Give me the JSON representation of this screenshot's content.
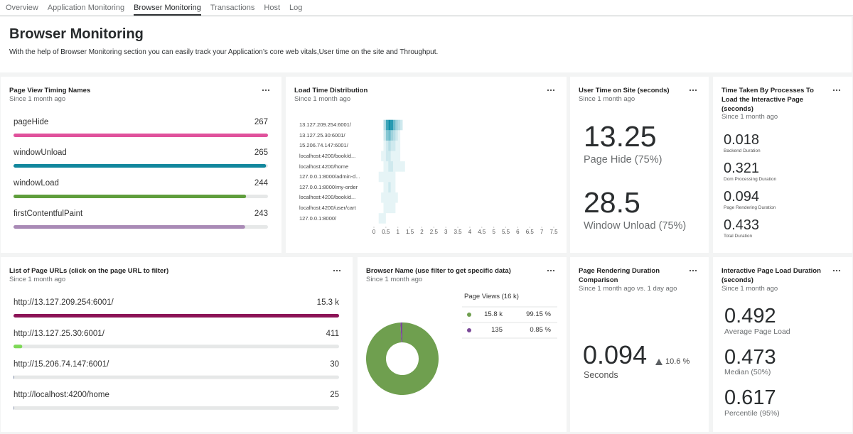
{
  "tabs": [
    "Overview",
    "Application Monitoring",
    "Browser Monitoring",
    "Transactions",
    "Host",
    "Log"
  ],
  "header": {
    "title": "Browser Monitoring",
    "description": "With the help of Browser Monitoring section you can easily track your Application’s core web vitals,User time on the site and Throughput."
  },
  "widgets": {
    "page_view_timing": {
      "title": "Page View Timing Names",
      "subtitle": "Since 1 month ago",
      "labels": [
        "pageHide",
        "windowUnload",
        "windowLoad",
        "firstContentfulPaint"
      ],
      "values": [
        267,
        265,
        244,
        243
      ],
      "colors": [
        "#e0529c",
        "#12879d",
        "#5f9e3c",
        "#a98ab6"
      ]
    },
    "load_time": {
      "title": "Load Time Distribution",
      "subtitle": "Since 1 month ago",
      "type": "heatmap",
      "rows": [
        "13.127.209.254:6001/",
        "13.127.25.30:6001/",
        "15.206.74.147:6001/",
        "localhost:4200/book/d...",
        "localhost:4200/home",
        "127.0.0.1:8000/admin-d...",
        "127.0.0.1:8000/my-order",
        "localhost:4200/book/d...",
        "localhost:4200/user/cart",
        "127.0.0.1:8000/"
      ],
      "bins": [
        0,
        0.1,
        0.2,
        0.3,
        0.4,
        0.5,
        0.6,
        0.7,
        0.8,
        0.9,
        1,
        1.1,
        1.2,
        1.3,
        1.4,
        1.5
      ],
      "values": [
        [
          0,
          0,
          0,
          0,
          3,
          8,
          10,
          9,
          6,
          4,
          3,
          2,
          0,
          0,
          0
        ],
        [
          0,
          0,
          0,
          0,
          2,
          5,
          6,
          4,
          3,
          2,
          1,
          0,
          0,
          0,
          0
        ],
        [
          0,
          0,
          0,
          0,
          1,
          2,
          3,
          2,
          2,
          1,
          1,
          0,
          0,
          0,
          0
        ],
        [
          0,
          0,
          0,
          1,
          1,
          2,
          2,
          1,
          1,
          1,
          1,
          0,
          0,
          0,
          0
        ],
        [
          0,
          0,
          0,
          0,
          1,
          1,
          2,
          2,
          1,
          1,
          1,
          1,
          1,
          0,
          0
        ],
        [
          0,
          0,
          1,
          1,
          1,
          1,
          1,
          1,
          1,
          0,
          0,
          0,
          0,
          0,
          0
        ],
        [
          0,
          0,
          0,
          0,
          1,
          1,
          2,
          1,
          1,
          0,
          0,
          0,
          0,
          0,
          0
        ],
        [
          0,
          0,
          0,
          1,
          1,
          1,
          1,
          1,
          1,
          1,
          0,
          0,
          0,
          0,
          0
        ],
        [
          0,
          0,
          0,
          0,
          1,
          1,
          1,
          1,
          1,
          0,
          0,
          0,
          0,
          0,
          0
        ],
        [
          0,
          0,
          1,
          1,
          1,
          0,
          0,
          0,
          0,
          0,
          0,
          0,
          0,
          0,
          0
        ]
      ],
      "xlim": [
        0,
        7.5
      ],
      "xticks": [
        0,
        0.5,
        1,
        1.5,
        2,
        2.5,
        3,
        3.5,
        4,
        4.5,
        5,
        5.5,
        6,
        6.5,
        7,
        7.5
      ],
      "color": "#0e8fa8"
    },
    "user_time": {
      "title": "User Time on Site (seconds)",
      "subtitle": "Since 1 month ago",
      "metrics": [
        {
          "value": 13.25,
          "label": "Page Hide (75%)"
        },
        {
          "value": 28.5,
          "label": "Window Unload (75%)"
        }
      ]
    },
    "process_time": {
      "title": "Time Taken By Processes To Load the Interactive Page (seconds)",
      "subtitle": "Since 1 month ago",
      "metrics": [
        {
          "value": 0.018,
          "label": "Backend Duration"
        },
        {
          "value": 0.321,
          "label": "Dom Processing Duration"
        },
        {
          "value": 0.094,
          "label": "Page Rendering Duration"
        },
        {
          "value": 0.433,
          "label": "Total Duration"
        }
      ]
    },
    "page_urls": {
      "title": "List of Page URLs (click on the page URL to filter)",
      "subtitle": "Since 1 month ago",
      "labels": [
        "http://13.127.209.254:6001/",
        "http://13.127.25.30:6001/",
        "http://15.206.74.147:6001/",
        "http://localhost:4200/home"
      ],
      "values": [
        15300,
        411,
        30,
        25
      ],
      "value_labels": [
        "15.3 k",
        "411",
        "30",
        "25"
      ],
      "colors": [
        "#8c1457",
        "#7ed957",
        "#6b7a99",
        "#6b7a99"
      ]
    },
    "browser_name": {
      "title": "Browser Name (use filter to get specific data)",
      "subtitle": "Since 1 month ago",
      "type": "pie",
      "legend_title": "Page Views (16 k)",
      "views": [
        15800,
        135
      ],
      "view_labels": [
        "15.8 k",
        "135"
      ],
      "values": [
        99.15,
        0.85
      ],
      "value_labels": [
        "99.15 %",
        "0.85 %"
      ],
      "colors": [
        "#6f9f4f",
        "#7b4a99"
      ]
    },
    "rendering_comparison": {
      "title": "Page Rendering Duration Comparison",
      "subtitle": "Since 1 month ago vs. 1 day ago",
      "value": 0.094,
      "change": "10.6 %",
      "unit": "Seconds"
    },
    "interactive_load": {
      "title": "Interactive Page Load Duration (seconds)",
      "subtitle": "Since 1 month ago",
      "metrics": [
        {
          "value": 0.492,
          "label": "Average Page Load"
        },
        {
          "value": 0.473,
          "label": "Median (50%)"
        },
        {
          "value": 0.617,
          "label": "Percentile (95%)"
        }
      ]
    }
  }
}
